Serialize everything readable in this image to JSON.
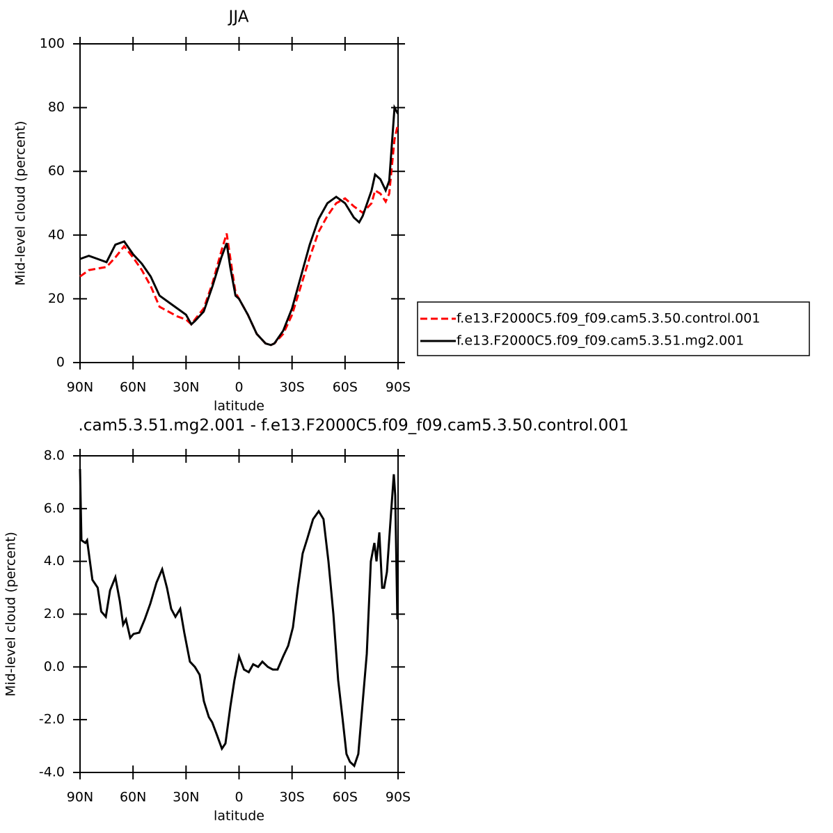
{
  "chart_data": [
    {
      "type": "line",
      "title": "JJA",
      "xlabel": "latitude",
      "ylabel": "Mid-level cloud (percent)",
      "xlim": [
        90,
        -90
      ],
      "xticks": [
        {
          "value": 90,
          "label": "90N"
        },
        {
          "value": 60,
          "label": "60N"
        },
        {
          "value": 30,
          "label": "30N"
        },
        0,
        {
          "value": -30,
          "label": "30S"
        },
        {
          "value": -60,
          "label": "60S"
        },
        {
          "value": -90,
          "label": "90S"
        }
      ],
      "ylim": [
        0,
        100
      ],
      "yticks": [
        0,
        20,
        40,
        60,
        80,
        100
      ],
      "legend": "right",
      "series": [
        {
          "name": "f.e13.F2000C5.f09_f09.cam5.3.50.control.001",
          "color": "#ff0000",
          "dash": true,
          "x": [
            90,
            85,
            80,
            75,
            70,
            65,
            60,
            55,
            50,
            45,
            40,
            35,
            30,
            27,
            25,
            20,
            15,
            10,
            7,
            5,
            2,
            0,
            -5,
            -10,
            -15,
            -18,
            -20,
            -25,
            -30,
            -35,
            -40,
            -45,
            -50,
            -55,
            -60,
            -65,
            -70,
            -75,
            -77,
            -80,
            -83,
            -85,
            -88,
            -90
          ],
          "values": [
            27,
            29,
            29.5,
            30,
            33,
            36.5,
            33,
            29,
            24,
            17.5,
            16,
            14.5,
            13.5,
            12,
            13.5,
            17,
            25,
            35,
            40.5,
            33,
            22,
            20,
            15,
            9,
            6,
            5.5,
            6,
            9,
            15,
            24,
            33,
            41,
            46,
            50,
            51.5,
            49,
            47,
            50,
            54,
            53,
            50.5,
            53,
            70,
            75
          ]
        },
        {
          "name": "f.e13.F2000C5.f09_f09.cam5.3.51.mg2.001",
          "color": "#000000",
          "dash": false,
          "x": [
            90,
            85,
            80,
            75,
            70,
            65,
            60,
            55,
            50,
            45,
            40,
            35,
            30,
            27,
            25,
            20,
            15,
            10,
            7,
            5,
            2,
            0,
            -5,
            -10,
            -15,
            -18,
            -20,
            -25,
            -30,
            -35,
            -40,
            -45,
            -50,
            -55,
            -60,
            -65,
            -68,
            -70,
            -75,
            -77,
            -80,
            -83,
            -85,
            -88,
            -90
          ],
          "values": [
            32.5,
            33.5,
            32.5,
            31.5,
            37,
            38,
            34,
            31,
            27,
            21,
            19,
            17,
            15,
            12,
            13,
            16,
            24,
            33,
            37.5,
            30,
            21,
            20,
            15,
            9,
            6,
            5.5,
            6,
            10,
            17,
            27,
            37,
            45,
            50,
            52,
            50,
            45.5,
            44,
            46,
            54,
            59,
            57.5,
            54,
            57,
            80,
            78
          ]
        }
      ]
    },
    {
      "type": "line",
      "title": ".cam5.3.51.mg2.001 - f.e13.F2000C5.f09_f09.cam5.3.50.control.001",
      "xlabel": "latitude",
      "ylabel": "Mid-level cloud (percent)",
      "xlim": [
        90,
        -90
      ],
      "xticks": [
        {
          "value": 90,
          "label": "90N"
        },
        {
          "value": 60,
          "label": "60N"
        },
        {
          "value": 30,
          "label": "30N"
        },
        0,
        {
          "value": -30,
          "label": "30S"
        },
        {
          "value": -60,
          "label": "60S"
        },
        {
          "value": -90,
          "label": "90S"
        }
      ],
      "ylim": [
        -4,
        8
      ],
      "yticks": [
        {
          "value": -4,
          "label": "-4.0"
        },
        {
          "value": -2,
          "label": "-2.0"
        },
        {
          "value": 0,
          "label": "0.0"
        },
        {
          "value": 2,
          "label": "2.0"
        },
        {
          "value": 4,
          "label": "4.0"
        },
        {
          "value": 6,
          "label": "6.0"
        },
        {
          "value": 8,
          "label": "8.0"
        }
      ],
      "series": [
        {
          "color": "#000000",
          "dash": false,
          "x": [
            90,
            89.2,
            87,
            86,
            83,
            80,
            78,
            75.4,
            73,
            70,
            67.5,
            65.6,
            64,
            61.6,
            59.7,
            56.5,
            53.4,
            50.2,
            46.7,
            43.5,
            40.8,
            38.4,
            36,
            33.3,
            31,
            27.8,
            25,
            22.3,
            19.9,
            17.1,
            15.2,
            12.4,
            9.7,
            7.7,
            4.9,
            2.6,
            0,
            -2.8,
            -5.5,
            -8,
            -10.8,
            -13.2,
            -16.3,
            -19.1,
            -21.8,
            -25,
            -27.8,
            -30.5,
            -33.3,
            -36,
            -38.8,
            -41.9,
            -45.1,
            -47.8,
            -50.6,
            -53.4,
            -56.1,
            -58.5,
            -60.8,
            -62.8,
            -65.2,
            -67.5,
            -69.9,
            -72.3,
            -74.6,
            -76.6,
            -77.8,
            -79.4,
            -81,
            -82.1,
            -83.7,
            -86,
            -87.6,
            -88.4,
            -89.6
          ],
          "values": [
            7.5,
            4.8,
            4.7,
            4.8,
            3.3,
            3.0,
            2.1,
            1.9,
            2.9,
            3.4,
            2.5,
            1.6,
            1.8,
            1.1,
            1.25,
            1.3,
            1.8,
            2.4,
            3.2,
            3.7,
            3.0,
            2.2,
            1.9,
            2.2,
            1.3,
            0.2,
            0.0,
            -0.3,
            -1.3,
            -1.9,
            -2.1,
            -2.6,
            -3.1,
            -2.9,
            -1.5,
            -0.5,
            0.4,
            -0.1,
            -0.2,
            0.1,
            0.0,
            0.2,
            0.0,
            -0.1,
            -0.1,
            0.4,
            0.8,
            1.5,
            3.0,
            4.3,
            4.9,
            5.6,
            5.9,
            5.6,
            4.0,
            2.0,
            -0.5,
            -1.9,
            -3.3,
            -3.6,
            -3.75,
            -3.3,
            -1.4,
            0.5,
            4.0,
            4.7,
            4.0,
            5.1,
            3.0,
            3.0,
            3.6,
            5.8,
            7.3,
            6.5,
            1.8
          ]
        }
      ]
    }
  ]
}
